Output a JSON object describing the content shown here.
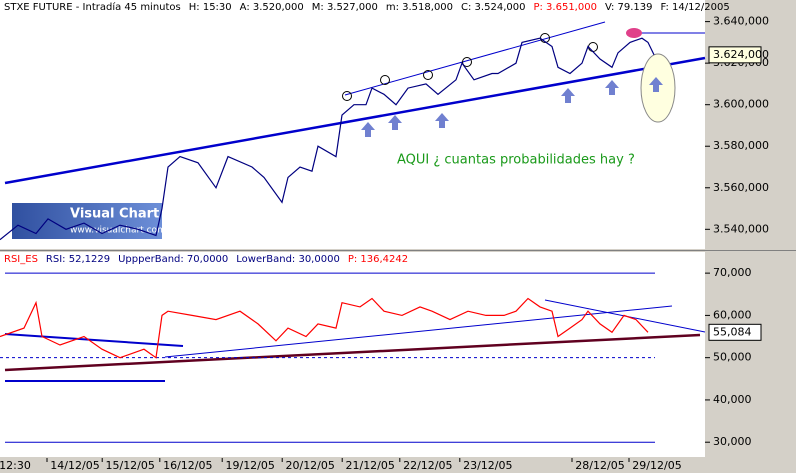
{
  "chart_data": [
    {
      "type": "line",
      "header": [
        {
          "text": "STXE FUTURE - Intradía 45 minutos",
          "color": "#000000"
        },
        {
          "text": "H: 15:30",
          "color": "#000000"
        },
        {
          "text": "A: 3.520,000",
          "color": "#000000"
        },
        {
          "text": "M: 3.527,000",
          "color": "#000000"
        },
        {
          "text": "m: 3.518,000",
          "color": "#000000"
        },
        {
          "text": "C: 3.524,000",
          "color": "#000000"
        },
        {
          "text": "P: 3.651,000",
          "color": "#ff0000"
        },
        {
          "text": "V: 79.139",
          "color": "#000000"
        },
        {
          "text": "F: 14/12/2005",
          "color": "#000000"
        }
      ],
      "annotation": "AQUI ¿ cuantas probabilidades hay ?",
      "last_label": "3.624,000",
      "series": [
        {
          "name": "STXE FUTURE",
          "color": "#000080",
          "x": [
            0,
            3,
            6,
            8,
            11,
            14,
            17,
            20,
            23,
            26,
            27,
            28,
            30,
            33,
            36,
            38,
            42,
            44,
            47,
            48,
            50,
            52,
            53,
            56,
            57,
            59,
            61,
            62,
            64,
            66,
            68,
            71,
            73,
            76,
            77,
            79,
            82,
            83,
            86,
            87,
            90,
            92,
            93,
            95,
            97,
            98,
            100,
            102,
            103,
            105,
            107,
            108,
            109
          ],
          "values": [
            3535,
            3542,
            3538,
            3545,
            3540,
            3543,
            3538,
            3542,
            3540,
            3537,
            3550,
            3570,
            3575,
            3572,
            3560,
            3575,
            3570,
            3565,
            3553,
            3565,
            3570,
            3568,
            3580,
            3575,
            3595,
            3600,
            3600,
            3608,
            3605,
            3600,
            3608,
            3610,
            3605,
            3612,
            3620,
            3612,
            3615,
            3615,
            3620,
            3630,
            3632,
            3628,
            3618,
            3615,
            3620,
            3628,
            3622,
            3618,
            3625,
            3630,
            3632,
            3630,
            3624
          ]
        }
      ],
      "xlim": [
        0,
        117.5
      ],
      "ylim": [
        3531,
        3648
      ],
      "yticks": [
        {
          "value": 3540,
          "label": "3.540,000"
        },
        {
          "value": 3560,
          "label": "3.560,000"
        },
        {
          "value": 3580,
          "label": "3.580,000"
        },
        {
          "value": 3600,
          "label": "3.600,000"
        },
        {
          "value": 3620,
          "label": "3.620,000"
        },
        {
          "value": 3640,
          "label": "3.640,000"
        }
      ]
    },
    {
      "type": "line",
      "header": [
        {
          "text": "RSI_ES",
          "color": "#ff0000"
        },
        {
          "text": "RSI: 52,1229",
          "color": "#000080"
        },
        {
          "text": "UppperBand: 70,0000",
          "color": "#000080"
        },
        {
          "text": "LowerBand: 30,0000",
          "color": "#000080"
        },
        {
          "text": "P: 136,4242",
          "color": "#ff0000"
        }
      ],
      "last_label": "55,084",
      "bands": [
        70,
        30
      ],
      "series": [
        {
          "name": "RSI",
          "color": "#ff0000",
          "x": [
            0,
            4,
            6,
            7,
            10,
            14,
            17,
            20,
            24,
            26,
            27,
            28,
            32,
            36,
            40,
            43,
            46,
            48,
            51,
            53,
            56,
            57,
            60,
            62,
            64,
            67,
            70,
            72,
            75,
            78,
            81,
            84,
            86,
            88,
            90,
            92,
            93,
            95,
            97,
            98,
            100,
            102,
            104,
            106,
            108
          ],
          "values": [
            55,
            57,
            63,
            55,
            53,
            55,
            52,
            50,
            52,
            50,
            60,
            61,
            60,
            59,
            61,
            58,
            54,
            57,
            55,
            58,
            57,
            63,
            62,
            64,
            61,
            60,
            62,
            61,
            59,
            61,
            60,
            60,
            61,
            64,
            62,
            61,
            55,
            57,
            59,
            61,
            58,
            56,
            60,
            59,
            56
          ]
        }
      ],
      "xlim": [
        0,
        117.5
      ],
      "ylim": [
        26.5,
        75
      ],
      "yticks": [
        {
          "value": 30,
          "label": "30,000"
        },
        {
          "value": 40,
          "label": "40,000"
        },
        {
          "value": 50,
          "label": "50,000"
        },
        {
          "value": 60,
          "label": "60,000"
        },
        {
          "value": 70,
          "label": "70,000"
        }
      ],
      "xticks": [
        {
          "value": 2.5,
          "label": "12:30"
        },
        {
          "value": 12.5,
          "label": "14/12/05"
        },
        {
          "value": 21.7,
          "label": "15/12/05"
        },
        {
          "value": 31.3,
          "label": "16/12/05"
        },
        {
          "value": 41.7,
          "label": "19/12/05"
        },
        {
          "value": 51.7,
          "label": "20/12/05"
        },
        {
          "value": 61.7,
          "label": "21/12/05"
        },
        {
          "value": 71.3,
          "label": "22/12/05"
        },
        {
          "value": 81.3,
          "label": "23/12/05"
        },
        {
          "value": 100,
          "label": "28/12/05"
        },
        {
          "value": 109.5,
          "label": "29/12/05"
        }
      ]
    }
  ],
  "logo": {
    "title": "Visual Chart",
    "url": "www.visualchart.com"
  }
}
